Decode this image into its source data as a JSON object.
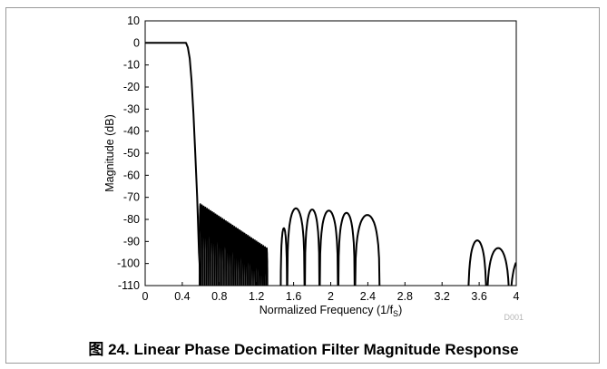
{
  "chart_data": {
    "type": "line",
    "title": "",
    "xlabel": "Normalized Frequency (1/f",
    "xlabel_sub": "S",
    "xlabel_tail": ")",
    "ylabel": "Magnitude (dB)",
    "xlim": [
      0,
      4
    ],
    "ylim": [
      -110,
      10
    ],
    "xticks": [
      0,
      0.4,
      0.8,
      1.2,
      1.6,
      2,
      2.4,
      2.8,
      3.2,
      3.6,
      4
    ],
    "xtick_labels": [
      "0",
      "0.4",
      "0.8",
      "1.2",
      "1.6",
      "2",
      "2.4",
      "2.8",
      "3.2",
      "3.6",
      "4"
    ],
    "yticks": [
      10,
      0,
      -10,
      -20,
      -30,
      -40,
      -50,
      -60,
      -70,
      -80,
      -90,
      -100,
      -110
    ],
    "ytick_labels": [
      "10",
      "0",
      "-10",
      "-20",
      "-30",
      "-40",
      "-50",
      "-60",
      "-70",
      "-80",
      "-90",
      "-100",
      "-110"
    ],
    "grid": false,
    "legend": "none",
    "line_color": "#000000",
    "series": [
      {
        "passband": {
          "x": [
            0,
            0.44
          ],
          "y": [
            0,
            0
          ]
        },
        "transition": {
          "x": [
            0.44,
            0.46,
            0.48,
            0.5,
            0.52,
            0.54,
            0.56,
            0.58,
            0.6
          ],
          "y": [
            0,
            -2,
            -7,
            -17,
            -32,
            -50,
            -70,
            -95,
            -110
          ]
        },
        "stopband_ripples": {
          "start": 0.585,
          "end": 1.32,
          "count": 40,
          "peak_start": -73,
          "peak_end": -93
        },
        "lobes": [
          {
            "x0": 1.46,
            "x1": 1.53,
            "peak": -84
          },
          {
            "x0": 1.53,
            "x1": 1.72,
            "peak": -75
          },
          {
            "x0": 1.72,
            "x1": 1.88,
            "peak": -75.5
          },
          {
            "x0": 1.88,
            "x1": 2.08,
            "peak": -76
          },
          {
            "x0": 2.08,
            "x1": 2.26,
            "peak": -77
          },
          {
            "x0": 2.26,
            "x1": 2.53,
            "peak": -78
          },
          {
            "x0": 3.48,
            "x1": 3.68,
            "peak": -89.5
          },
          {
            "x0": 3.68,
            "x1": 3.93,
            "peak": -93
          },
          {
            "x0": 3.93,
            "x1": 4.0,
            "peak": -97,
            "partial": true
          }
        ]
      }
    ],
    "watermark": "D001"
  },
  "caption": "图 24. Linear Phase Decimation Filter Magnitude Response"
}
